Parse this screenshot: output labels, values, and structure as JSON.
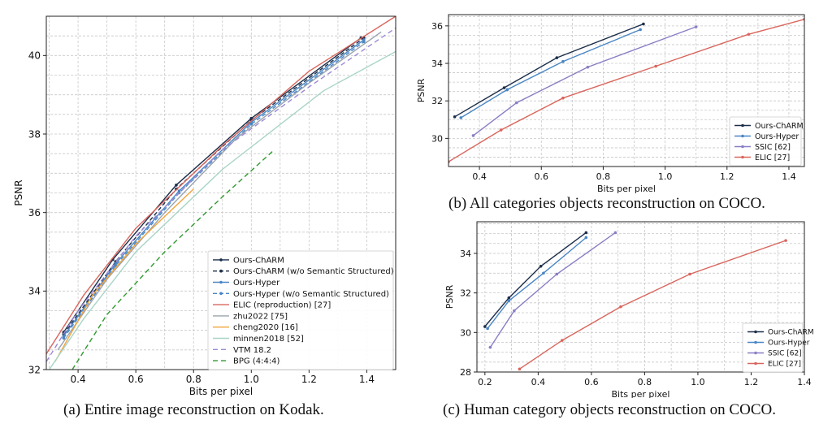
{
  "figure": {
    "captions": [
      "(a) Entire image reconstruction on Kodak.",
      "(b) All categories objects reconstruction on COCO.",
      "(c) Human category objects reconstruction on COCO."
    ]
  },
  "chart_data": [
    {
      "type": "line",
      "xlabel": "Bits per pixel",
      "ylabel": "PSNR",
      "xlim": [
        0.29,
        1.5
      ],
      "ylim": [
        32,
        41
      ],
      "xticks": [
        0.4,
        0.6,
        0.8,
        1.0,
        1.2,
        1.4
      ],
      "xtick_labels": [
        "0.4",
        "0.6",
        "0.8",
        "1.0",
        "1.2",
        "1.4"
      ],
      "yticks": [
        32,
        34,
        36,
        38,
        40
      ],
      "ytick_labels": [
        "32",
        "34",
        "36",
        "38",
        "40"
      ],
      "grid": true,
      "legend": "bottom-right",
      "series": [
        {
          "name": "Ours-ChARM",
          "color": "#1c2e4a",
          "dash": "",
          "marker": true,
          "x": [
            0.35,
            0.52,
            0.74,
            1.0,
            1.38
          ],
          "y": [
            32.95,
            34.8,
            36.7,
            38.4,
            40.45
          ]
        },
        {
          "name": "Ours-ChARM (w/o Semantic Structured)",
          "color": "#1c2e4a",
          "dash": "5,3",
          "marker": true,
          "x": [
            0.35,
            0.53,
            0.74,
            1.0,
            1.39
          ],
          "y": [
            32.9,
            34.75,
            36.6,
            38.35,
            40.45
          ]
        },
        {
          "name": "Ours-Hyper",
          "color": "#4a86c5",
          "dash": "",
          "marker": true,
          "x": [
            0.35,
            0.53,
            0.75,
            1.0,
            1.39
          ],
          "y": [
            32.85,
            34.7,
            36.55,
            38.3,
            40.4
          ]
        },
        {
          "name": "Ours-Hyper (w/o Semantic Structured)",
          "color": "#4a86c5",
          "dash": "5,3",
          "marker": true,
          "x": [
            0.35,
            0.53,
            0.75,
            1.0,
            1.39
          ],
          "y": [
            32.8,
            34.65,
            36.5,
            38.25,
            40.35
          ]
        },
        {
          "name": "ELIC (reproduction) [27]",
          "color": "#d9665d",
          "dash": "",
          "marker": false,
          "x": [
            0.29,
            0.42,
            0.6,
            0.9,
            1.2,
            1.5
          ],
          "y": [
            32.4,
            33.9,
            35.6,
            37.7,
            39.6,
            41.0
          ]
        },
        {
          "name": "zhu2022 [75]",
          "color": "#9aa3ac",
          "dash": "",
          "marker": false,
          "x": [
            0.33,
            0.5,
            0.7,
            0.95,
            1.2,
            1.45
          ],
          "y": [
            32.5,
            34.3,
            36.0,
            37.9,
            39.3,
            40.6
          ]
        },
        {
          "name": "cheng2020 [16]",
          "color": "#f2a53a",
          "dash": "",
          "marker": false,
          "x": [
            0.32,
            0.45,
            0.6,
            0.8
          ],
          "y": [
            32.2,
            33.9,
            35.2,
            36.6
          ]
        },
        {
          "name": "minnen2018 [52]",
          "color": "#a8d4c6",
          "dash": "",
          "marker": false,
          "x": [
            0.3,
            0.42,
            0.6,
            0.9,
            1.25,
            1.5
          ],
          "y": [
            32.0,
            33.3,
            35.0,
            37.1,
            39.1,
            40.1
          ]
        },
        {
          "name": "VTM 18.2",
          "color": "#9c89d8",
          "dash": "6,4",
          "marker": false,
          "x": [
            0.29,
            0.4,
            0.6,
            0.9,
            1.2,
            1.5
          ],
          "y": [
            32.2,
            33.5,
            35.4,
            37.6,
            39.2,
            40.7
          ]
        },
        {
          "name": "BPG (4:4:4)",
          "color": "#2e9a2e",
          "dash": "6,4",
          "marker": false,
          "x": [
            0.38,
            0.5,
            0.7,
            0.9,
            1.08
          ],
          "y": [
            32.0,
            33.4,
            35.0,
            36.4,
            37.6
          ]
        }
      ]
    },
    {
      "type": "line",
      "xlabel": "Bits per pixel",
      "ylabel": "PSNR",
      "xlim": [
        0.3,
        1.45
      ],
      "ylim": [
        28.5,
        36.6
      ],
      "xticks": [
        0.4,
        0.6,
        0.8,
        1.0,
        1.2,
        1.4
      ],
      "xtick_labels": [
        "0.4",
        "0.6",
        "0.8",
        "1.0",
        "1.2",
        "1.4"
      ],
      "yticks": [
        30,
        32,
        34,
        36
      ],
      "ytick_labels": [
        "30",
        "32",
        "34",
        "36"
      ],
      "grid": true,
      "legend": "bottom-right",
      "series": [
        {
          "name": "Ours-ChARM",
          "color": "#1c2e4a",
          "dash": "",
          "marker": true,
          "x": [
            0.32,
            0.48,
            0.65,
            0.93
          ],
          "y": [
            31.15,
            32.7,
            34.3,
            36.1
          ]
        },
        {
          "name": "Ours-Hyper",
          "color": "#4a86c5",
          "dash": "",
          "marker": true,
          "x": [
            0.34,
            0.49,
            0.67,
            0.92
          ],
          "y": [
            31.1,
            32.6,
            34.1,
            35.8
          ]
        },
        {
          "name": "SSIC [62]",
          "color": "#8a7ec4",
          "dash": "",
          "marker": true,
          "x": [
            0.38,
            0.52,
            0.75,
            1.1
          ],
          "y": [
            30.15,
            31.9,
            33.8,
            35.95
          ]
        },
        {
          "name": "ELIC [27]",
          "color": "#d9665d",
          "dash": "",
          "marker": true,
          "x": [
            0.3,
            0.47,
            0.67,
            0.97,
            1.27,
            1.45
          ],
          "y": [
            28.75,
            30.45,
            32.15,
            33.85,
            35.55,
            36.35
          ]
        }
      ]
    },
    {
      "type": "line",
      "xlabel": "Bits per pixel",
      "ylabel": "PSNR",
      "xlim": [
        0.17,
        1.4
      ],
      "ylim": [
        28,
        35.6
      ],
      "xticks": [
        0.2,
        0.4,
        0.6,
        0.8,
        1.0,
        1.2,
        1.4
      ],
      "xtick_labels": [
        "0.2",
        "0.4",
        "0.6",
        "0.8",
        "1.0",
        "1.2",
        "1.4"
      ],
      "yticks": [
        28,
        30,
        32,
        34
      ],
      "ytick_labels": [
        "28",
        "30",
        "32",
        "34"
      ],
      "grid": true,
      "legend": "bottom-right",
      "series": [
        {
          "name": "Ours-ChARM",
          "color": "#1c2e4a",
          "dash": "",
          "marker": true,
          "x": [
            0.2,
            0.29,
            0.41,
            0.58
          ],
          "y": [
            30.3,
            31.75,
            33.35,
            35.05
          ]
        },
        {
          "name": "Ours-Hyper",
          "color": "#4a86c5",
          "dash": "",
          "marker": true,
          "x": [
            0.21,
            0.29,
            0.42,
            0.58
          ],
          "y": [
            30.2,
            31.6,
            33.0,
            34.8
          ]
        },
        {
          "name": "SSIC [62]",
          "color": "#8a7ec4",
          "dash": "",
          "marker": true,
          "x": [
            0.22,
            0.31,
            0.47,
            0.69
          ],
          "y": [
            29.25,
            31.1,
            32.95,
            35.05
          ]
        },
        {
          "name": "ELIC [27]",
          "color": "#d9665d",
          "dash": "",
          "marker": true,
          "x": [
            0.33,
            0.49,
            0.71,
            0.97,
            1.33
          ],
          "y": [
            28.15,
            29.6,
            31.3,
            32.95,
            34.65
          ]
        }
      ]
    }
  ]
}
